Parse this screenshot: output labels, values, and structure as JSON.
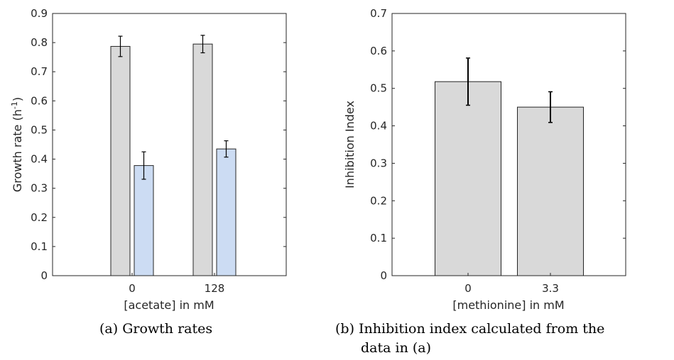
{
  "chart_data": [
    {
      "type": "bar",
      "categories": [
        "0",
        "128"
      ],
      "series": [
        {
          "values": [
            0.787,
            0.795
          ],
          "errors": [
            0.035,
            0.03
          ],
          "color": "#d9d9d9"
        },
        {
          "values": [
            0.378,
            0.435
          ],
          "errors": [
            0.047,
            0.028
          ],
          "color": "#ccdcf3"
        }
      ],
      "xlabel": "[acetate] in mM",
      "ylabel": "Growth rate (h",
      "ylabel_sup": "-1",
      "ylabel_end": ")",
      "ylim": [
        0,
        0.9
      ],
      "yticks": [
        "0",
        "0.1",
        "0.2",
        "0.3",
        "0.4",
        "0.5",
        "0.6",
        "0.7",
        "0.8",
        "0.9"
      ],
      "caption": "(a) Growth rates"
    },
    {
      "type": "bar",
      "categories": [
        "0",
        "3.3"
      ],
      "values": [
        0.518,
        0.45
      ],
      "errors": [
        0.063,
        0.041
      ],
      "color": "#d9d9d9",
      "xlabel": "[methionine] in mM",
      "ylabel": "Inhibition Index",
      "ylim": [
        0,
        0.7
      ],
      "yticks": [
        "0",
        "0.1",
        "0.2",
        "0.3",
        "0.4",
        "0.5",
        "0.6",
        "0.7"
      ],
      "caption_lines": [
        "(b) Inhibition index calculated from the",
        "data in (a)"
      ]
    }
  ]
}
